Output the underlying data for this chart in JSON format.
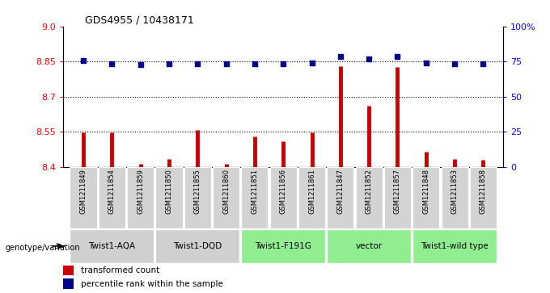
{
  "title": "GDS4955 / 10438171",
  "samples": [
    "GSM1211849",
    "GSM1211854",
    "GSM1211859",
    "GSM1211850",
    "GSM1211855",
    "GSM1211860",
    "GSM1211851",
    "GSM1211856",
    "GSM1211861",
    "GSM1211847",
    "GSM1211852",
    "GSM1211857",
    "GSM1211848",
    "GSM1211853",
    "GSM1211858"
  ],
  "red_values": [
    8.547,
    8.547,
    8.415,
    8.435,
    8.557,
    8.415,
    8.53,
    8.51,
    8.548,
    8.83,
    8.66,
    8.825,
    8.465,
    8.435,
    8.43
  ],
  "blue_values": [
    75.5,
    73.5,
    73.0,
    73.5,
    73.5,
    73.5,
    73.5,
    73.5,
    74.0,
    78.5,
    77.0,
    78.5,
    74.0,
    73.5,
    73.5
  ],
  "groups": [
    {
      "label": "Twist1-AQA",
      "start": 0,
      "end": 3,
      "color": "#d0d0d0"
    },
    {
      "label": "Twist1-DQD",
      "start": 3,
      "end": 6,
      "color": "#d0d0d0"
    },
    {
      "label": "Twist1-F191G",
      "start": 6,
      "end": 9,
      "color": "#90ee90"
    },
    {
      "label": "vector",
      "start": 9,
      "end": 12,
      "color": "#90ee90"
    },
    {
      "label": "Twist1-wild type",
      "start": 12,
      "end": 15,
      "color": "#90ee90"
    }
  ],
  "ylim_left": [
    8.4,
    9.0
  ],
  "ylim_right": [
    0,
    100
  ],
  "yticks_left": [
    8.4,
    8.55,
    8.7,
    8.85,
    9.0
  ],
  "yticks_right": [
    0,
    25,
    50,
    75,
    100
  ],
  "ytick_labels_right": [
    "0",
    "25",
    "50",
    "75",
    "100%"
  ],
  "hlines": [
    8.55,
    8.7,
    8.85
  ],
  "bar_color": "#cc0000",
  "dot_color": "#00008b",
  "legend_red": "transformed count",
  "legend_blue": "percentile rank within the sample",
  "genotype_label": "genotype/variation",
  "sample_bg": "#d3d3d3"
}
